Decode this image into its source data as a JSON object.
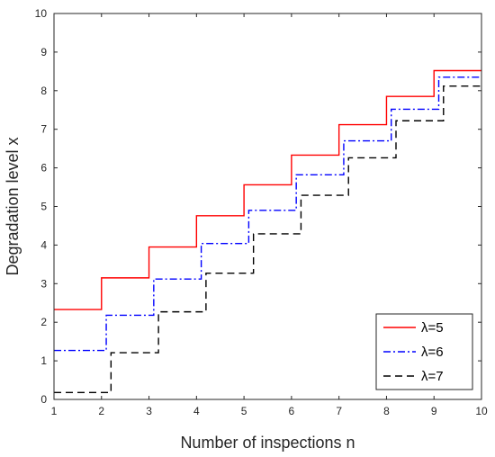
{
  "chart_data": {
    "type": "line",
    "step": "post",
    "title": "",
    "xlabel": "Number of inspections n",
    "ylabel": "Degradation level x",
    "xlim": [
      1,
      10
    ],
    "ylim": [
      0,
      10
    ],
    "xticks": [
      1,
      2,
      3,
      4,
      5,
      6,
      7,
      8,
      9,
      10
    ],
    "yticks": [
      0,
      1,
      2,
      3,
      4,
      5,
      6,
      7,
      8,
      9,
      10
    ],
    "grid": false,
    "legend_position": "bottom-right",
    "series": [
      {
        "name": "λ=5",
        "color": "#ff0000",
        "dash": "solid",
        "x": [
          1,
          2,
          3,
          4,
          5,
          6,
          7,
          8,
          9,
          10
        ],
        "y": [
          2.33,
          3.15,
          3.95,
          4.76,
          5.56,
          6.33,
          7.12,
          7.85,
          8.52,
          8.52
        ]
      },
      {
        "name": "λ=6",
        "color": "#0000ff",
        "dash": "dashdot",
        "x": [
          1,
          2.1,
          3.1,
          4.1,
          5.1,
          6.1,
          7.1,
          8.1,
          9.1,
          10
        ],
        "y": [
          1.27,
          2.18,
          3.12,
          4.04,
          4.9,
          5.82,
          6.7,
          7.52,
          8.35,
          8.35
        ]
      },
      {
        "name": "λ=7",
        "color": "#000000",
        "dash": "dashed",
        "x": [
          1,
          2.2,
          3.2,
          4.2,
          5.2,
          6.2,
          7.2,
          8.2,
          9.2,
          10
        ],
        "y": [
          0.18,
          1.21,
          2.27,
          3.27,
          4.29,
          5.29,
          6.26,
          7.22,
          8.12,
          8.12
        ]
      }
    ]
  }
}
